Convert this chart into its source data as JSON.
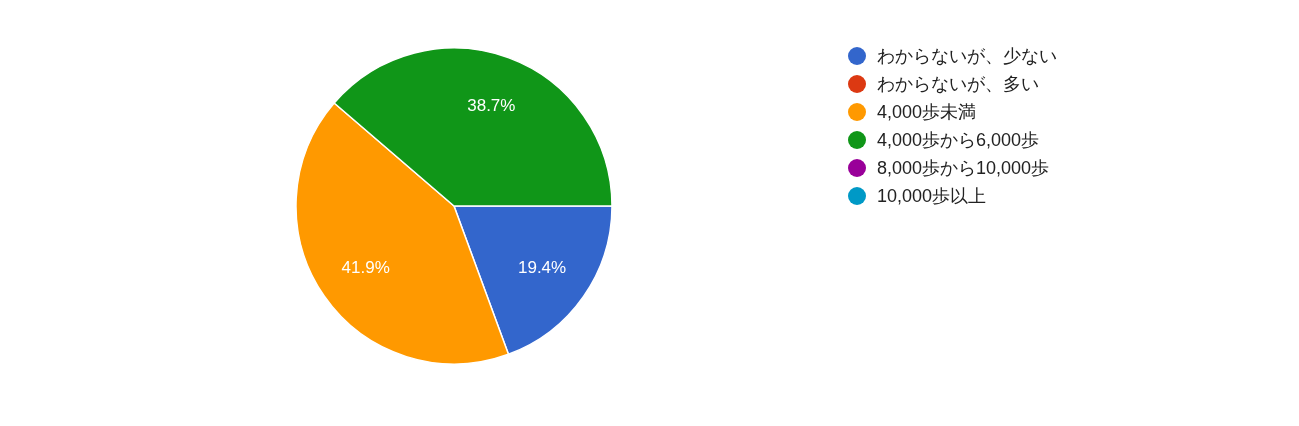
{
  "chart_data": {
    "type": "pie",
    "categories": [
      "わからないが、少ない",
      "わからないが、多い",
      "4,000歩未満",
      "4,000歩から6,000歩",
      "8,000歩から10,000歩",
      "10,000歩以上"
    ],
    "values": [
      19.4,
      0,
      41.9,
      38.7,
      0,
      0
    ],
    "colors": [
      "#3366cc",
      "#dc3912",
      "#ff9900",
      "#109618",
      "#990099",
      "#0099c6"
    ],
    "value_labels": [
      "19.4%",
      null,
      "41.9%",
      "38.7%",
      null,
      null
    ],
    "legend": "right"
  }
}
